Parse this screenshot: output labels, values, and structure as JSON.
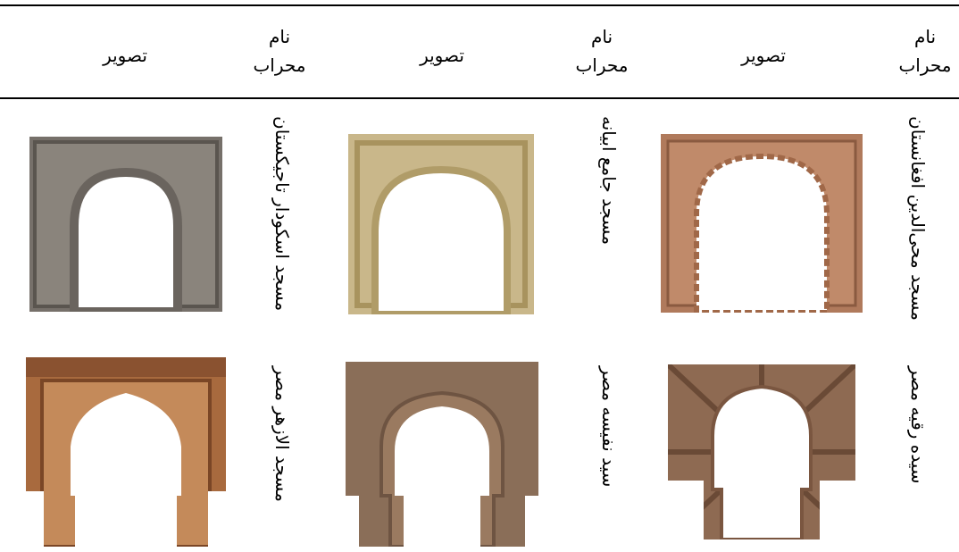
{
  "table": {
    "header": [
      "نام محراب",
      "تصویر",
      "نام محراب",
      "تصویر",
      "نام محراب",
      "تصویر"
    ],
    "rows": [
      [
        "مسجد محی‌الدین افغانستان",
        "مسجد جامع ابیانه",
        "مسجد اسکودار تاجیکستان"
      ],
      [
        "سیده رقیه مصر",
        "سید نفیسه مصر",
        "مسجد الازهر مصر"
      ]
    ]
  }
}
